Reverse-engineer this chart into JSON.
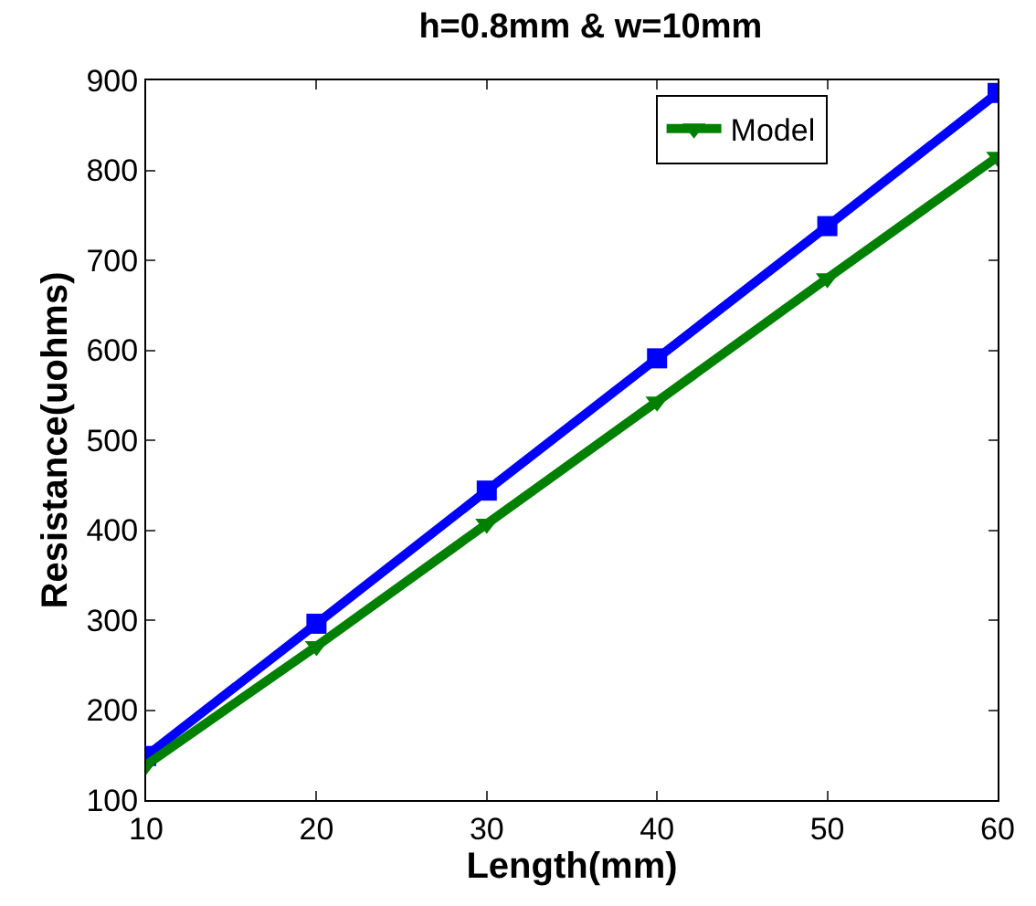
{
  "chart_data": {
    "type": "line",
    "title": "h=0.8mm & w=10mm",
    "xlabel": "Length(mm)",
    "ylabel": "Resistance(uohms)",
    "x": [
      10,
      20,
      30,
      40,
      50,
      60
    ],
    "series": [
      {
        "color": "#0000ff",
        "marker": "square",
        "values": [
          149,
          296,
          444,
          591,
          738,
          886
        ]
      },
      {
        "name": "Model",
        "color": "#008000",
        "marker": "triangle",
        "values": [
          139,
          271,
          407,
          543,
          680,
          815
        ]
      }
    ],
    "xlim": [
      10,
      60
    ],
    "xticks": [
      10,
      20,
      30,
      40,
      50,
      60
    ],
    "ylim": [
      100,
      900
    ],
    "yticks": [
      100,
      200,
      300,
      400,
      500,
      600,
      700,
      800,
      900
    ],
    "legend": "top right",
    "line_style": "solid"
  }
}
